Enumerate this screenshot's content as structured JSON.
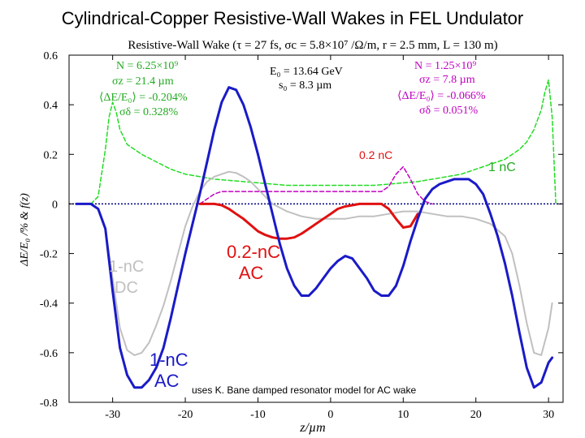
{
  "slide_title": "Cylindrical-Copper Resistive-Wall Wakes in FEL Undulator",
  "colors": {
    "ac_1nc": "#1a1ac8",
    "dc_1nc": "#c0c0c0",
    "ac_02nc": "#e01010",
    "dc_02nc": "#c000c0",
    "density_1nc": "#22dd22",
    "density_02nc": "#c000c0",
    "zero_line": "#000080"
  },
  "chart_data": {
    "type": "line",
    "title": "Resistive-Wall Wake (τ = 27 fs, σc = 5.8×10⁷ /Ω/m, r = 2.5 mm, L = 130 m)",
    "xlabel": "z/µm",
    "ylabel": "ΔE/E₀ /%  &  f(z)",
    "xlim": [
      -36,
      32
    ],
    "ylim": [
      -0.8,
      0.6
    ],
    "xticks": [
      -30,
      -20,
      -10,
      0,
      10,
      20,
      30
    ],
    "xtick_labels": [
      "-30",
      "-20",
      "-10",
      "0",
      "10",
      "20",
      "30"
    ],
    "yticks": [
      0.6,
      0.4,
      0.2,
      0,
      -0.2,
      -0.4,
      -0.6,
      -0.8
    ],
    "ytick_labels": [
      "0.6",
      "0.4",
      "0.2",
      "0",
      "-0.2",
      "-0.4",
      "-0.6",
      "-0.8"
    ],
    "grid": false,
    "series": [
      {
        "name": "1-nC AC",
        "color": "#1a1ac8",
        "style": "solid",
        "width": 3,
        "x": [
          -35,
          -33,
          -32,
          -31,
          -30,
          -29,
          -28,
          -27,
          -26,
          -25,
          -24,
          -23,
          -22,
          -21,
          -20,
          -19,
          -18,
          -17,
          -16,
          -15,
          -14,
          -13,
          -12,
          -11,
          -10,
          -9,
          -8,
          -7,
          -6,
          -5,
          -4,
          -3,
          -2,
          -1,
          0,
          1,
          2,
          3,
          4,
          5,
          6,
          7,
          8,
          9,
          10,
          11,
          12,
          13,
          14,
          15,
          16,
          17,
          18,
          19,
          20,
          21,
          22,
          23,
          24,
          25,
          26,
          27,
          28,
          29,
          30,
          30.5
        ],
        "y": [
          0,
          0,
          -0.02,
          -0.1,
          -0.35,
          -0.58,
          -0.69,
          -0.74,
          -0.74,
          -0.71,
          -0.66,
          -0.58,
          -0.46,
          -0.33,
          -0.2,
          -0.08,
          0.04,
          0.17,
          0.3,
          0.41,
          0.47,
          0.46,
          0.4,
          0.31,
          0.2,
          0.08,
          -0.04,
          -0.16,
          -0.26,
          -0.33,
          -0.37,
          -0.37,
          -0.34,
          -0.3,
          -0.26,
          -0.23,
          -0.21,
          -0.22,
          -0.26,
          -0.3,
          -0.35,
          -0.37,
          -0.37,
          -0.33,
          -0.25,
          -0.15,
          -0.06,
          0.02,
          0.06,
          0.08,
          0.09,
          0.1,
          0.1,
          0.1,
          0.08,
          0.04,
          -0.04,
          -0.13,
          -0.24,
          -0.37,
          -0.52,
          -0.66,
          -0.74,
          -0.72,
          -0.64,
          -0.62
        ]
      },
      {
        "name": "1-nC DC",
        "color": "#c0c0c0",
        "style": "solid",
        "width": 2,
        "x": [
          -35,
          -33,
          -32,
          -31,
          -30,
          -29,
          -28,
          -27,
          -26,
          -25,
          -24,
          -23,
          -22,
          -21,
          -20,
          -19,
          -18,
          -17,
          -16,
          -15,
          -14,
          -13,
          -12,
          -11,
          -10,
          -9,
          -8,
          -6,
          -4,
          -2,
          0,
          2,
          4,
          6,
          8,
          10,
          12,
          14,
          16,
          18,
          20,
          22,
          24,
          25,
          26,
          27,
          28,
          29,
          30,
          30.5
        ],
        "y": [
          0,
          0,
          -0.02,
          -0.1,
          -0.3,
          -0.5,
          -0.59,
          -0.61,
          -0.6,
          -0.56,
          -0.49,
          -0.41,
          -0.31,
          -0.2,
          -0.09,
          -0.01,
          0.05,
          0.09,
          0.11,
          0.12,
          0.13,
          0.125,
          0.11,
          0.09,
          0.06,
          0.03,
          0.0,
          -0.03,
          -0.05,
          -0.06,
          -0.06,
          -0.06,
          -0.05,
          -0.05,
          -0.04,
          -0.03,
          -0.03,
          -0.04,
          -0.05,
          -0.05,
          -0.06,
          -0.08,
          -0.13,
          -0.2,
          -0.33,
          -0.48,
          -0.6,
          -0.61,
          -0.5,
          -0.4
        ]
      },
      {
        "name": "0.2-nC AC",
        "color": "#e01010",
        "style": "solid",
        "width": 3,
        "x": [
          -18,
          -17,
          -16,
          -15,
          -14,
          -13,
          -12,
          -11,
          -10,
          -9,
          -8,
          -7,
          -6,
          -5,
          -4,
          -3,
          -2,
          -1,
          0,
          1,
          2,
          3,
          4,
          5,
          6,
          7,
          8,
          9,
          10,
          11,
          12
        ],
        "y": [
          0,
          0,
          0,
          -0.005,
          -0.02,
          -0.04,
          -0.06,
          -0.085,
          -0.11,
          -0.125,
          -0.135,
          -0.14,
          -0.14,
          -0.135,
          -0.12,
          -0.1,
          -0.08,
          -0.06,
          -0.04,
          -0.02,
          -0.01,
          -0.005,
          0,
          0,
          0,
          0,
          -0.02,
          -0.06,
          -0.095,
          -0.09,
          -0.04
        ]
      },
      {
        "name": "0.2-nC DC",
        "color": "#c000c0",
        "style": "dashed",
        "width": 1.5,
        "x": [
          -18,
          -17,
          -16,
          -15,
          -14,
          -13,
          -12,
          -11,
          -10,
          -9,
          -8,
          -7,
          -6,
          -5,
          -4,
          -3,
          -2,
          -1,
          0,
          1,
          2,
          3,
          4,
          5,
          6,
          7,
          8,
          9,
          10,
          11,
          12,
          13,
          14
        ],
        "y": [
          0,
          0.02,
          0.04,
          0.05,
          0.05,
          0.05,
          0.05,
          0.05,
          0.05,
          0.05,
          0.05,
          0.05,
          0.05,
          0.05,
          0.05,
          0.05,
          0.05,
          0.05,
          0.05,
          0.05,
          0.05,
          0.05,
          0.05,
          0.05,
          0.05,
          0.05,
          0.07,
          0.12,
          0.15,
          0.1,
          0.04,
          0.01,
          0
        ]
      },
      {
        "name": "1 nC bunch profile",
        "color": "#22dd22",
        "style": "dashed",
        "width": 1.5,
        "x": [
          -33,
          -32,
          -31,
          -30.5,
          -30,
          -29.5,
          -29,
          -28,
          -27,
          -26,
          -24,
          -22,
          -20,
          -18,
          -16,
          -14,
          -12,
          -10,
          -8,
          -6,
          -4,
          -2,
          0,
          2,
          4,
          6,
          8,
          10,
          12,
          14,
          16,
          18,
          20,
          22,
          24,
          26,
          27,
          28,
          29,
          29.5,
          30,
          30.5,
          31
        ],
        "y": [
          0,
          0.03,
          0.22,
          0.35,
          0.41,
          0.37,
          0.3,
          0.24,
          0.22,
          0.2,
          0.17,
          0.14,
          0.12,
          0.11,
          0.1,
          0.095,
          0.09,
          0.085,
          0.08,
          0.075,
          0.075,
          0.075,
          0.075,
          0.075,
          0.075,
          0.075,
          0.08,
          0.085,
          0.09,
          0.1,
          0.11,
          0.12,
          0.14,
          0.16,
          0.18,
          0.22,
          0.25,
          0.3,
          0.38,
          0.45,
          0.5,
          0.35,
          0
        ]
      }
    ],
    "annotations": {
      "params_1nc": [
        "N = 6.25×10⁹",
        "σz = 21.4 µm",
        "⟨ΔE/E₀⟩ = -0.204%",
        "σδ = 0.328%"
      ],
      "params_center": [
        "E₀ = 13.64 GeV",
        "s₀ = 8.3 µm"
      ],
      "params_02nc": [
        "N = 1.25×10⁹",
        "σz = 7.8 µm",
        "⟨ΔE/E₀⟩ = -0.066%",
        "σδ = 0.051%"
      ],
      "label_02nc": "0.2 nC",
      "label_1nc": "1 nC",
      "label_1nc_dc": [
        "1-nC",
        "DC"
      ],
      "label_02nc_ac": [
        "0.2-nC",
        "AC"
      ],
      "label_1nc_ac": [
        "1-nC",
        "AC"
      ],
      "note": "uses K. Bane damped resonator model for AC wake"
    }
  }
}
